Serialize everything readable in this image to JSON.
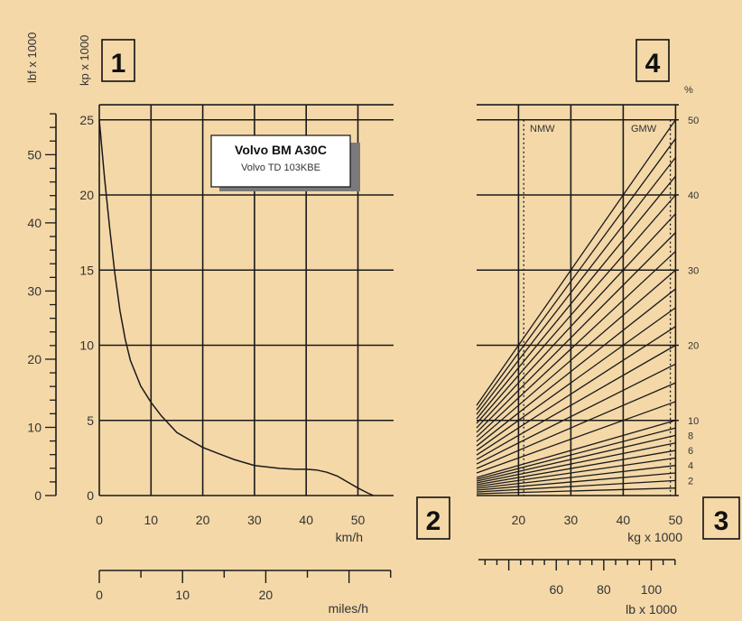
{
  "panels": {
    "p1": "1",
    "p2": "2",
    "p3": "3",
    "p4": "4"
  },
  "legend_box": {
    "title": "Volvo BM A30C",
    "subtitle": "Volvo TD 103KBE"
  },
  "chart_data": [
    {
      "type": "line",
      "panel": "1",
      "title": "",
      "ylabel": "kp x 1000",
      "ylabel_secondary": "lbf x 1000",
      "xlabel": "km/h",
      "xlabel_secondary": "miles/h",
      "xlim": [
        0,
        55
      ],
      "ylim": [
        0,
        26
      ],
      "x_ticks": [
        0,
        10,
        20,
        30,
        40,
        50
      ],
      "y_ticks": [
        0,
        5,
        10,
        15,
        20,
        25
      ],
      "y2_ticks": [
        0,
        10,
        20,
        30,
        40,
        50
      ],
      "x2_ticks": [
        0,
        10,
        20
      ],
      "grid": true,
      "series": [
        {
          "name": "",
          "x": [
            0,
            1,
            2,
            3,
            4,
            5,
            6,
            8,
            10,
            12,
            15,
            18,
            20,
            23,
            26,
            30,
            35,
            38,
            40,
            42,
            44,
            46,
            48,
            50,
            52,
            53
          ],
          "y": [
            25,
            21.2,
            17.8,
            14.8,
            12.3,
            10.4,
            9.0,
            7.3,
            6.2,
            5.3,
            4.2,
            3.6,
            3.2,
            2.8,
            2.4,
            2.0,
            1.8,
            1.75,
            1.75,
            1.7,
            1.55,
            1.3,
            0.9,
            0.5,
            0.15,
            0
          ]
        }
      ]
    },
    {
      "type": "line",
      "panel": "4",
      "title": "",
      "xlabel": "kg x 1000",
      "xlabel_secondary": "lb x 1000",
      "ylabel": "%",
      "xlim": [
        12,
        50
      ],
      "ylim": [
        0,
        26
      ],
      "x_ticks": [
        20,
        30,
        40,
        50
      ],
      "x2_ticks": [
        60,
        80,
        100
      ],
      "percent_ticks": [
        2,
        4,
        6,
        8,
        10,
        20,
        30,
        40,
        50
      ],
      "grid": true,
      "annotations": [
        "NMW",
        "GMW"
      ],
      "reference_lines_x": [
        21,
        49
      ],
      "grade_percent": [
        1,
        2,
        3,
        4,
        5,
        6,
        7,
        8,
        9,
        10,
        12.5,
        15,
        17.5,
        20,
        22.5,
        25,
        27.5,
        30,
        32.5,
        35,
        37.5,
        40,
        42.5,
        45,
        47.5,
        50
      ]
    }
  ]
}
